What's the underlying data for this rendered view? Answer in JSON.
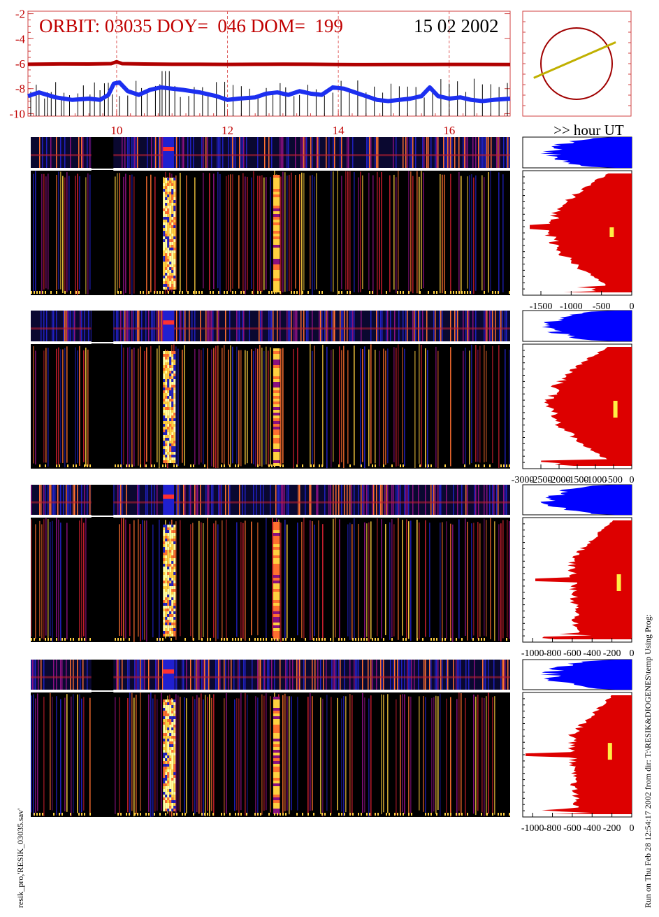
{
  "header": {
    "title": "ORBIT: 03035 DOY=  046 DOM=  199",
    "date": "15 02 2002",
    "xaxis_label": ">> hour UT"
  },
  "footer": {
    "left_caption": "resik_pro,'RESIK_03035.sav'",
    "right_caption": "Run on Thu Feb 28 12:54:17 2002  from dir: T:\\RESIK&DIOGENES\\temp Using Prog:"
  },
  "colors": {
    "title": "#c00000",
    "upper_trace": "#b00000",
    "lower_trace": "#1c2ff0",
    "spikes": "#000000",
    "orbit_circle": "#a00000",
    "orbit_track": "#c0b000",
    "histogram_top": "#0000ff",
    "histogram_main": "#dd0000",
    "marker": "#ffee44",
    "gridline": "#e06060"
  },
  "chart_data": [
    {
      "type": "line",
      "name": "time-series",
      "title": "ORBIT: 03035 DOY=  046 DOM=  199",
      "xlabel": ">> hour UT",
      "xlim": [
        8.4,
        17.1
      ],
      "ylim": [
        -10.2,
        -1.8
      ],
      "yticks": [
        "-2",
        "-4",
        "-6",
        "-8",
        "-10"
      ],
      "xticks": [
        "10",
        "12",
        "14",
        "16"
      ],
      "grid_x": [
        10,
        12,
        14,
        16
      ],
      "series": [
        {
          "x": [
            8.4,
            9.0,
            9.5,
            9.9,
            10.0,
            10.1,
            10.5,
            11.0,
            11.5,
            12.0,
            12.5,
            13.0,
            13.5,
            14.0,
            14.5,
            15.0,
            15.5,
            16.0,
            16.5,
            17.1
          ],
          "values": [
            -6.05,
            -6.02,
            -6.03,
            -6.0,
            -5.85,
            -6.0,
            -6.03,
            -6.05,
            -6.05,
            -6.06,
            -6.05,
            -6.04,
            -6.05,
            -6.07,
            -6.08,
            -6.07,
            -6.07,
            -6.06,
            -6.06,
            -6.07
          ]
        },
        {
          "x": [
            8.4,
            8.6,
            8.9,
            9.2,
            9.5,
            9.7,
            9.85,
            9.95,
            10.05,
            10.2,
            10.4,
            10.6,
            10.8,
            11.0,
            11.2,
            11.5,
            11.8,
            12.0,
            12.2,
            12.5,
            12.7,
            12.9,
            13.1,
            13.3,
            13.5,
            13.7,
            13.9,
            14.1,
            14.3,
            14.5,
            14.7,
            14.9,
            15.1,
            15.3,
            15.5,
            15.65,
            15.8,
            16.0,
            16.2,
            16.4,
            16.6,
            16.8,
            17.1
          ],
          "values": [
            -8.6,
            -8.3,
            -8.7,
            -8.9,
            -8.8,
            -8.9,
            -8.5,
            -7.6,
            -7.5,
            -8.2,
            -8.5,
            -8.1,
            -7.9,
            -8.0,
            -8.1,
            -8.3,
            -8.6,
            -8.9,
            -8.8,
            -8.7,
            -8.4,
            -8.3,
            -8.5,
            -8.2,
            -8.4,
            -8.5,
            -7.9,
            -8.0,
            -8.3,
            -8.6,
            -8.9,
            -9.0,
            -8.9,
            -8.8,
            -8.6,
            -7.9,
            -8.6,
            -8.8,
            -8.7,
            -8.9,
            -9.0,
            -8.9,
            -8.8
          ]
        }
      ],
      "spikes": [
        8.45,
        8.55,
        8.6,
        8.7,
        8.75,
        8.82,
        8.9,
        9.0,
        9.05,
        9.15,
        9.3,
        9.4,
        9.52,
        9.6,
        9.7,
        9.78,
        9.85,
        9.92,
        10.05,
        10.2,
        10.35,
        10.45,
        10.55,
        10.7,
        10.78,
        10.82,
        10.88,
        10.95,
        11.05,
        11.15,
        11.3,
        11.4,
        11.55,
        11.65,
        11.8,
        11.95,
        12.1,
        12.25,
        12.4,
        12.55,
        12.7,
        12.82,
        12.95,
        13.05,
        13.2,
        13.3,
        13.45,
        13.6,
        13.75,
        13.9,
        14.05,
        14.2,
        14.35,
        14.5,
        14.65,
        14.8,
        14.95,
        15.1,
        15.25,
        15.4,
        15.55,
        15.7,
        15.85,
        16.0,
        16.15,
        16.3,
        16.45,
        16.6,
        16.75,
        16.9,
        17.05
      ]
    },
    {
      "type": "diagram",
      "name": "orbit-plot",
      "circle": {
        "cx": 0,
        "cy": 0,
        "r": 1
      },
      "track": [
        [
          -1.2,
          -0.4
        ],
        [
          1.1,
          0.6
        ]
      ]
    },
    {
      "type": "heatmap",
      "name": "spectrogram-panels",
      "xlim": [
        8.4,
        17.1
      ],
      "panels": 4,
      "gap_hours": [
        [
          9.5,
          9.9
        ]
      ],
      "bright_band_hours": [
        [
          10.8,
          11.0
        ]
      ],
      "secondary_band_hours": [
        [
          12.8,
          12.92
        ]
      ],
      "colormap": [
        "#000000",
        "#1a0a5a",
        "#2020c0",
        "#8a1080",
        "#d02030",
        "#ff7030",
        "#ffd040",
        "#ffffa0"
      ]
    },
    {
      "type": "area",
      "name": "histograms",
      "panels": [
        {
          "xticks": [
            "-1500",
            "-1000",
            "-500",
            "0"
          ],
          "xlim": [
            -1800,
            0
          ],
          "marker": -330
        },
        {
          "xticks": [
            "-3000",
            "-2500",
            "-2000",
            "-1500",
            "-1000",
            "-500",
            "0"
          ],
          "xlim": [
            -3000,
            0
          ],
          "marker": -450
        },
        {
          "xticks": [
            "-1000",
            "-800",
            "-600",
            "-400",
            "-200",
            "0"
          ],
          "xlim": [
            -1100,
            0
          ],
          "marker": -130
        },
        {
          "xticks": [
            "-1000",
            "-800",
            "-600",
            "-400",
            "-200",
            "0"
          ],
          "xlim": [
            -1100,
            0
          ],
          "marker": -220
        }
      ]
    }
  ]
}
